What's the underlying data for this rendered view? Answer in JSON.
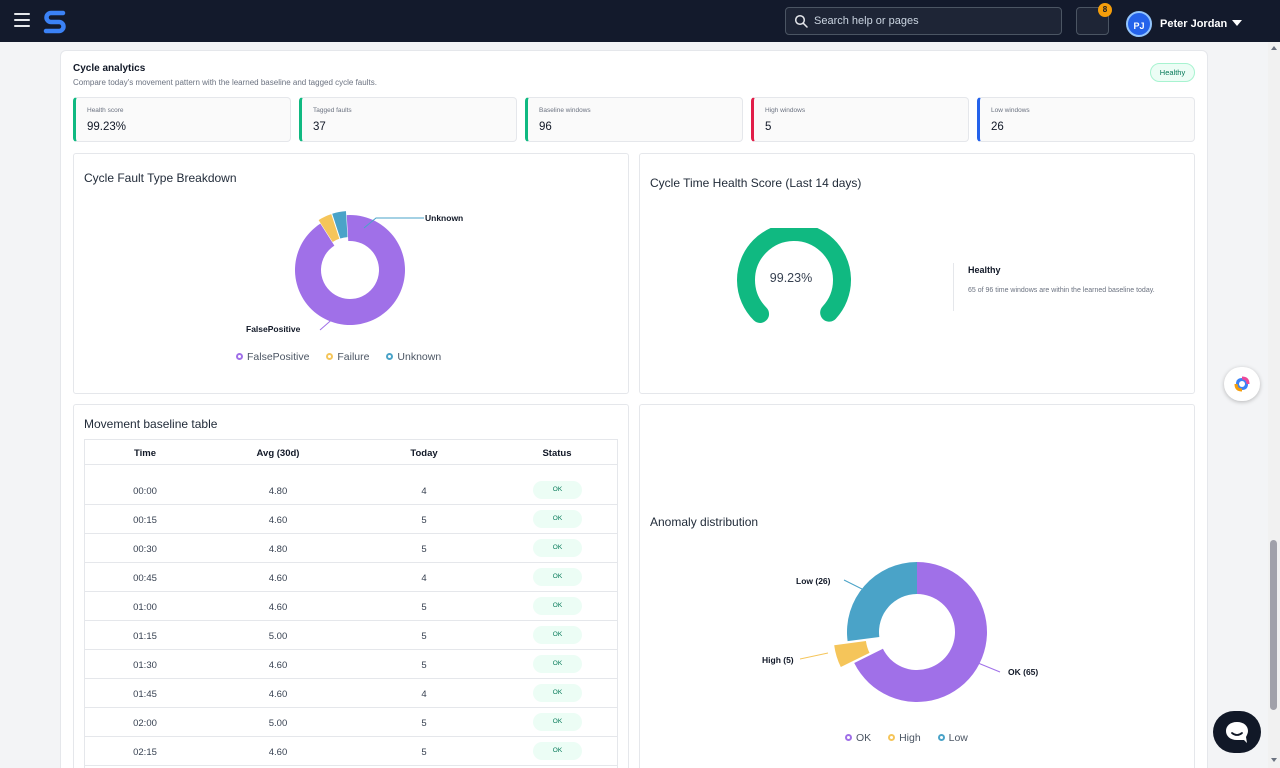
{
  "header": {
    "search_placeholder": "Search help or pages",
    "notification_count": "8",
    "user_initials": "PJ",
    "user_name": "Peter Jordan"
  },
  "section": {
    "title": "Cycle analytics",
    "subtitle": "Compare today's movement pattern with the learned baseline and tagged cycle faults.",
    "status": "Healthy"
  },
  "stats": [
    {
      "label": "Health score",
      "value": "99.23%",
      "accent": "#10b981"
    },
    {
      "label": "Tagged faults",
      "value": "37",
      "accent": "#10b981"
    },
    {
      "label": "Baseline windows",
      "value": "96",
      "accent": "#10b981"
    },
    {
      "label": "High windows",
      "value": "5",
      "accent": "#e11d48"
    },
    {
      "label": "Low windows",
      "value": "26",
      "accent": "#2563eb"
    }
  ],
  "fault_chart": {
    "title": "Cycle Fault Type Breakdown",
    "labels": {
      "false_positive": "FalsePositive",
      "unknown": "Unknown"
    },
    "legend": [
      {
        "name": "FalsePositive",
        "color": "#a070e8"
      },
      {
        "name": "Failure",
        "color": "#f5c55a"
      },
      {
        "name": "Unknown",
        "color": "#4aa3c8"
      }
    ]
  },
  "health_chart": {
    "title": "Cycle Time Health Score (Last 14 days)",
    "gauge_value": "99.23%",
    "gauge_fraction": 0.9923,
    "status_title": "Healthy",
    "status_desc": "65 of 96 time windows are within the learned baseline today."
  },
  "table": {
    "title": "Movement baseline table",
    "headers": [
      "Time",
      "Avg (30d)",
      "Today",
      "Status"
    ],
    "rows": [
      [
        "00:00",
        "4.80",
        "4",
        "OK"
      ],
      [
        "00:15",
        "4.60",
        "5",
        "OK"
      ],
      [
        "00:30",
        "4.80",
        "5",
        "OK"
      ],
      [
        "00:45",
        "4.60",
        "4",
        "OK"
      ],
      [
        "01:00",
        "4.60",
        "5",
        "OK"
      ],
      [
        "01:15",
        "5.00",
        "5",
        "OK"
      ],
      [
        "01:30",
        "4.60",
        "5",
        "OK"
      ],
      [
        "01:45",
        "4.60",
        "4",
        "OK"
      ],
      [
        "02:00",
        "5.00",
        "5",
        "OK"
      ],
      [
        "02:15",
        "4.60",
        "5",
        "OK"
      ]
    ]
  },
  "anomaly_chart": {
    "title": "Anomaly distribution",
    "labels": {
      "low": "Low (26)",
      "high": "High (5)",
      "ok": "OK (65)"
    },
    "legend": [
      {
        "name": "OK",
        "color": "#a070e8"
      },
      {
        "name": "High",
        "color": "#f5c55a"
      },
      {
        "name": "Low",
        "color": "#4aa3c8"
      }
    ]
  },
  "chart_data": [
    {
      "type": "pie",
      "title": "Cycle Fault Type Breakdown",
      "categories": [
        "FalsePositive",
        "Failure",
        "Unknown"
      ],
      "values": [
        34,
        1.5,
        1.5
      ],
      "colors": [
        "#a070e8",
        "#f5c55a",
        "#4aa3c8"
      ],
      "legend": "bottom"
    },
    {
      "type": "pie",
      "title": "Anomaly distribution",
      "categories": [
        "OK",
        "High",
        "Low"
      ],
      "values": [
        65,
        5,
        26
      ],
      "colors": [
        "#a070e8",
        "#f5c55a",
        "#4aa3c8"
      ],
      "legend": "bottom"
    }
  ]
}
